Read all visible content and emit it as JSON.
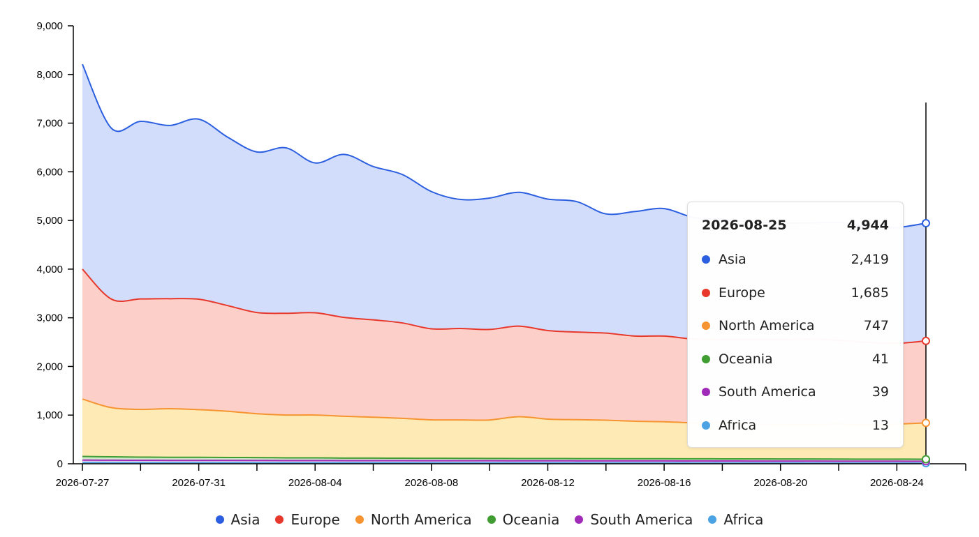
{
  "chart_data": {
    "type": "area",
    "stacked": true,
    "x": [
      "2026-07-27",
      "2026-07-28",
      "2026-07-29",
      "2026-07-30",
      "2026-07-31",
      "2026-08-01",
      "2026-08-02",
      "2026-08-03",
      "2026-08-04",
      "2026-08-05",
      "2026-08-06",
      "2026-08-07",
      "2026-08-08",
      "2026-08-09",
      "2026-08-10",
      "2026-08-11",
      "2026-08-12",
      "2026-08-13",
      "2026-08-14",
      "2026-08-15",
      "2026-08-16",
      "2026-08-17",
      "2026-08-18",
      "2026-08-19",
      "2026-08-20",
      "2026-08-21",
      "2026-08-22",
      "2026-08-23",
      "2026-08-24",
      "2026-08-25"
    ],
    "x_ticks": [
      "2026-07-27",
      "2026-07-31",
      "2026-08-04",
      "2026-08-08",
      "2026-08-12",
      "2026-08-16",
      "2026-08-20",
      "2026-08-24"
    ],
    "y_ticks": [
      "0",
      "1,000",
      "2,000",
      "3,000",
      "4,000",
      "5,000",
      "6,000",
      "7,000",
      "8,000",
      "9,000"
    ],
    "ylim": [
      0,
      9000
    ],
    "grid": false,
    "legend_position": "bottom",
    "series": [
      {
        "name": "Africa",
        "color": "#4ba3e3",
        "values": [
          25,
          24,
          24,
          23,
          23,
          23,
          22,
          22,
          22,
          21,
          21,
          21,
          20,
          20,
          20,
          19,
          19,
          19,
          18,
          18,
          18,
          17,
          17,
          16,
          16,
          15,
          15,
          14,
          14,
          13
        ]
      },
      {
        "name": "South America",
        "color": "#a02bb8",
        "values": [
          50,
          49,
          48,
          47,
          47,
          46,
          46,
          45,
          45,
          44,
          44,
          43,
          43,
          43,
          42,
          42,
          42,
          41,
          41,
          41,
          41,
          40,
          40,
          40,
          40,
          40,
          39,
          39,
          39,
          39
        ]
      },
      {
        "name": "Oceania",
        "color": "#3f9d32",
        "values": [
          75,
          70,
          65,
          62,
          62,
          60,
          60,
          55,
          55,
          52,
          52,
          50,
          50,
          48,
          48,
          47,
          47,
          46,
          46,
          45,
          45,
          45,
          44,
          44,
          43,
          43,
          42,
          42,
          42,
          41
        ]
      },
      {
        "name": "North America",
        "color": "#f59431",
        "values": [
          1180,
          1010,
          980,
          1000,
          980,
          950,
          900,
          880,
          880,
          860,
          840,
          820,
          790,
          790,
          790,
          860,
          810,
          800,
          790,
          770,
          760,
          740,
          750,
          720,
          710,
          710,
          720,
          700,
          720,
          747
        ]
      },
      {
        "name": "Europe",
        "color": "#e8382b",
        "values": [
          2670,
          2230,
          2270,
          2260,
          2270,
          2170,
          2080,
          2090,
          2100,
          2030,
          2000,
          1960,
          1870,
          1880,
          1860,
          1860,
          1820,
          1800,
          1790,
          1750,
          1760,
          1720,
          1700,
          1730,
          1740,
          1750,
          1720,
          1700,
          1660,
          1685
        ]
      },
      {
        "name": "Asia",
        "color": "#2c5fe0",
        "values": [
          4210,
          3510,
          3650,
          3560,
          3700,
          3460,
          3300,
          3400,
          3080,
          3350,
          3150,
          3050,
          2820,
          2650,
          2700,
          2750,
          2700,
          2680,
          2450,
          2560,
          2620,
          2500,
          2470,
          2420,
          2400,
          2390,
          2420,
          2380,
          2380,
          2419
        ]
      }
    ],
    "tooltip": {
      "date": "2026-08-25",
      "total": "4,944",
      "rows": [
        {
          "name": "Asia",
          "value": "2,419",
          "color": "#2c5fe0"
        },
        {
          "name": "Europe",
          "value": "1,685",
          "color": "#e8382b"
        },
        {
          "name": "North America",
          "value": "747",
          "color": "#f59431"
        },
        {
          "name": "Oceania",
          "value": "41",
          "color": "#3f9d32"
        },
        {
          "name": "South America",
          "value": "39",
          "color": "#a02bb8"
        },
        {
          "name": "Africa",
          "value": "13",
          "color": "#4ba3e3"
        }
      ]
    },
    "legend": [
      {
        "name": "Asia",
        "color": "#2c5fe0"
      },
      {
        "name": "Europe",
        "color": "#e8382b"
      },
      {
        "name": "North America",
        "color": "#f59431"
      },
      {
        "name": "Oceania",
        "color": "#3f9d32"
      },
      {
        "name": "South America",
        "color": "#a02bb8"
      },
      {
        "name": "Africa",
        "color": "#4ba3e3"
      }
    ]
  }
}
